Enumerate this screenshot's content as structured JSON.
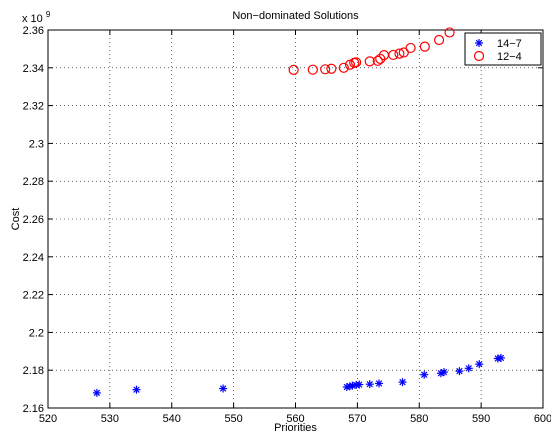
{
  "chart_data": {
    "type": "scatter",
    "title": "Non−dominated Solutions",
    "xlabel": "Priorities",
    "ylabel": "Cost",
    "exponent_label": "x 10",
    "exponent_power": "9",
    "xlim": [
      520,
      600
    ],
    "ylim": [
      2.16,
      2.36
    ],
    "x_ticks": [
      "520",
      "530",
      "540",
      "550",
      "560",
      "570",
      "580",
      "590",
      "600"
    ],
    "y_ticks": [
      "2.16",
      "2.18",
      "2.2",
      "2.22",
      "2.24",
      "2.26",
      "2.28",
      "2.3",
      "2.32",
      "2.34",
      "2.36"
    ],
    "x_tick_values": [
      520,
      530,
      540,
      550,
      560,
      570,
      580,
      590,
      600
    ],
    "y_tick_values": [
      2.16,
      2.18,
      2.2,
      2.22,
      2.24,
      2.26,
      2.28,
      2.3,
      2.32,
      2.34,
      2.36
    ],
    "grid": true,
    "legend_position": "top-right",
    "series": [
      {
        "name": "14−7",
        "marker": "asterisk",
        "color": "#0000ff",
        "x": [
          527.9,
          534.3,
          548.3,
          568.3,
          568.8,
          569.2,
          569.8,
          570.3,
          572.0,
          573.5,
          577.3,
          580.8,
          583.5,
          584.0,
          586.5,
          588.0,
          589.7,
          592.7,
          593.2
        ],
        "y": [
          2.168,
          2.1697,
          2.1703,
          2.1711,
          2.1715,
          2.1718,
          2.1722,
          2.1724,
          2.1726,
          2.173,
          2.1737,
          2.1776,
          2.1784,
          2.179,
          2.1795,
          2.181,
          2.1832,
          2.1862,
          2.1865
        ]
      },
      {
        "name": "12−4",
        "marker": "circle",
        "color": "#ff0000",
        "x": [
          559.7,
          562.8,
          564.8,
          565.8,
          567.8,
          568.8,
          569.5,
          569.8,
          572.0,
          573.3,
          573.7,
          574.3,
          575.8,
          576.8,
          577.5,
          578.6,
          580.9,
          583.2,
          584.9
        ],
        "y": [
          2.3389,
          2.339,
          2.3392,
          2.3395,
          2.34,
          2.3416,
          2.3426,
          2.3429,
          2.3434,
          2.3437,
          2.3447,
          2.3467,
          2.3468,
          2.3475,
          2.3481,
          2.3505,
          2.3512,
          2.3547,
          2.3587
        ]
      }
    ]
  },
  "colors": {
    "background": "#ffffff",
    "axes": "#000000",
    "series_1": "#0000ff",
    "series_2": "#ff0000"
  }
}
